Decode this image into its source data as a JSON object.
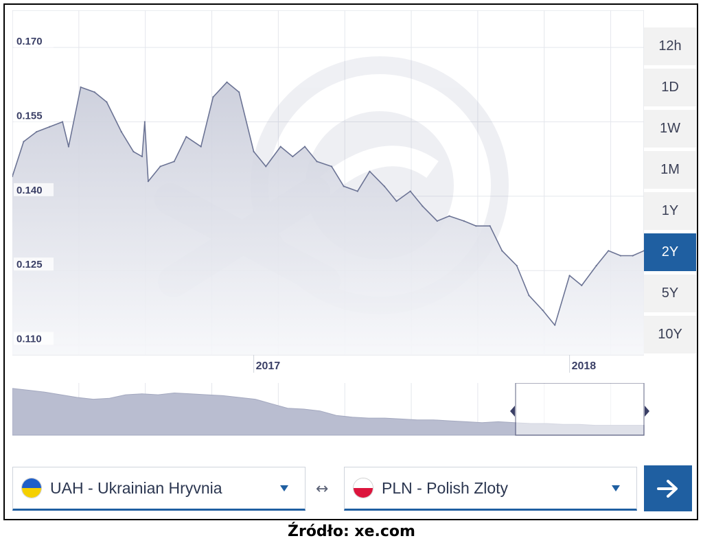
{
  "chart_data": {
    "type": "area",
    "title": "",
    "xlabel": "",
    "ylabel": "",
    "x_tick_labels": [
      "2017",
      "2018"
    ],
    "y_ticks": [
      "0.170",
      "0.155",
      "0.140",
      "0.125",
      "0.110"
    ],
    "ylim": [
      0.108,
      0.1775
    ],
    "xlim": [
      "2016-03-28",
      "2018-03-28"
    ],
    "grid": true,
    "series": [
      {
        "x": [
          "2016-03-28",
          "2016-04-10",
          "2016-04-25",
          "2016-05-10",
          "2016-05-25",
          "2016-06-01",
          "2016-06-15",
          "2016-07-01",
          "2016-07-15",
          "2016-08-01",
          "2016-08-15",
          "2016-08-25",
          "2016-08-28",
          "2016-09-01",
          "2016-09-15",
          "2016-10-01",
          "2016-10-15",
          "2016-11-01",
          "2016-11-15",
          "2016-12-01",
          "2016-12-15",
          "2017-01-01",
          "2017-01-15",
          "2017-02-01",
          "2017-02-15",
          "2017-03-01",
          "2017-03-15",
          "2017-04-01",
          "2017-04-15",
          "2017-05-01",
          "2017-05-15",
          "2017-06-01",
          "2017-06-15",
          "2017-07-01",
          "2017-07-15",
          "2017-08-01",
          "2017-08-15",
          "2017-09-01",
          "2017-09-15",
          "2017-10-01",
          "2017-10-15",
          "2017-11-01",
          "2017-11-15",
          "2017-12-01",
          "2017-12-15",
          "2018-01-01",
          "2018-01-15",
          "2018-02-01",
          "2018-02-15",
          "2018-03-01",
          "2018-03-15",
          "2018-03-28"
        ],
        "y": [
          0.144,
          0.151,
          0.153,
          0.154,
          0.155,
          0.15,
          0.162,
          0.161,
          0.159,
          0.153,
          0.149,
          0.148,
          0.155,
          0.143,
          0.146,
          0.147,
          0.152,
          0.15,
          0.16,
          0.163,
          0.161,
          0.149,
          0.146,
          0.15,
          0.148,
          0.15,
          0.147,
          0.146,
          0.142,
          0.141,
          0.145,
          0.142,
          0.139,
          0.141,
          0.138,
          0.135,
          0.136,
          0.135,
          0.134,
          0.134,
          0.129,
          0.126,
          0.12,
          0.117,
          0.114,
          0.124,
          0.122,
          0.126,
          0.129,
          0.128,
          0.128,
          0.129
        ]
      }
    ],
    "navigator": {
      "values": [
        0.162,
        0.16,
        0.158,
        0.155,
        0.152,
        0.15,
        0.151,
        0.155,
        0.156,
        0.155,
        0.157,
        0.156,
        0.155,
        0.154,
        0.152,
        0.15,
        0.145,
        0.14,
        0.139,
        0.137,
        0.132,
        0.13,
        0.129,
        0.129,
        0.128,
        0.127,
        0.127,
        0.126,
        0.125,
        0.124,
        0.125,
        0.124,
        0.123,
        0.123,
        0.122,
        0.122,
        0.121,
        0.121,
        0.121,
        0.121
      ],
      "selected_range": [
        "2016-03-28",
        "2018-03-28"
      ]
    }
  },
  "range_buttons": [
    "12h",
    "1D",
    "1W",
    "1M",
    "1Y",
    "2Y",
    "5Y",
    "10Y"
  ],
  "active_range": "2Y",
  "from_currency": {
    "label": "UAH - Ukrainian Hryvnia",
    "flag_colors": [
      "#1f5fc8",
      "#f5d000"
    ]
  },
  "to_currency": {
    "label": "PLN - Polish Zloty",
    "flag_colors": [
      "#ffffff",
      "#dc143c"
    ]
  },
  "swap_symbol": "↔",
  "source_text": "Źródło: xe.com",
  "colors": {
    "accent": "#1f5fa1",
    "line": "#6b7394",
    "area_top": "#c8cbd9",
    "area_bottom": "#f6f7fa",
    "grid": "#e4e6ec",
    "axis_text": "#3a3f66"
  }
}
